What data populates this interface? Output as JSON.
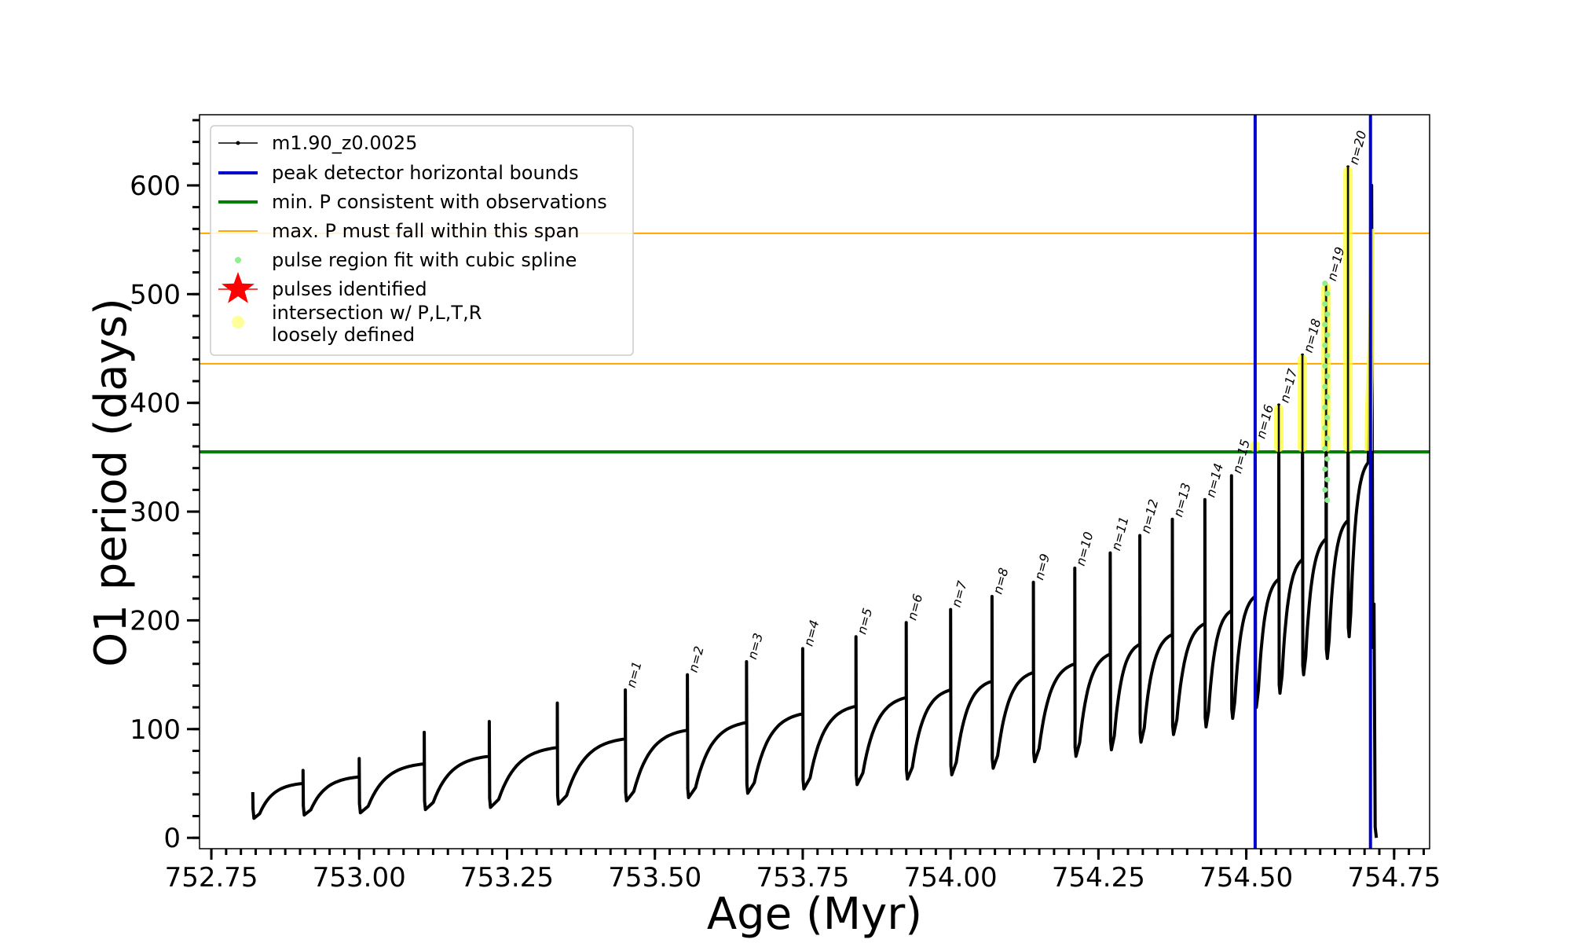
{
  "chart_data": {
    "type": "line",
    "title": "",
    "xlabel": "Age (Myr)",
    "ylabel": "O1 period (days)",
    "xlim": [
      752.73,
      754.81
    ],
    "ylim": [
      -10,
      665
    ],
    "x_ticks": [
      752.75,
      753.0,
      753.25,
      753.5,
      753.75,
      754.0,
      754.25,
      754.5,
      754.75
    ],
    "x_tick_labels": [
      "752.75",
      "753.00",
      "753.25",
      "753.50",
      "753.75",
      "754.00",
      "754.25",
      "754.50",
      "754.75"
    ],
    "y_ticks": [
      0,
      100,
      200,
      300,
      400,
      500,
      600
    ],
    "y_tick_labels": [
      "0",
      "100",
      "200",
      "300",
      "400",
      "500",
      "600"
    ],
    "grid": false,
    "legend_position": "top-left",
    "legend": [
      {
        "label": "m1.90_z0.0025",
        "color": "#000000",
        "style": "line-dot"
      },
      {
        "label": "peak detector horizontal bounds",
        "color": "#0000cc",
        "style": "line"
      },
      {
        "label": "min. P consistent with observations",
        "color": "#008000",
        "style": "line"
      },
      {
        "label": "max. P must fall within this span",
        "color": "#ffa500",
        "style": "thin-line"
      },
      {
        "label": "pulse region fit with cubic spline",
        "color": "#90ee90",
        "style": "dot"
      },
      {
        "label": "pulses identified",
        "color": "#ff0000",
        "style": "star"
      },
      {
        "label": "intersection w/ P,L,T,R\nloosely defined",
        "color": "#ffff99",
        "style": "big-dot"
      }
    ],
    "vertical_lines": [
      {
        "x": 754.515,
        "color": "#0000cc"
      },
      {
        "x": 754.71,
        "color": "#0000cc"
      }
    ],
    "horizontal_lines": [
      {
        "y": 355,
        "color": "#008000"
      },
      {
        "y": 436,
        "color": "#ffa500"
      },
      {
        "y": 556,
        "color": "#ffa500"
      }
    ],
    "series": [
      {
        "name": "m1.90_z0.0025",
        "color": "#000000",
        "cycles": [
          {
            "x0": 752.82,
            "x1": 752.905,
            "p0": 42,
            "pmin": 18,
            "pmax": 50
          },
          {
            "x0": 752.905,
            "x1": 753.0,
            "p0": 62,
            "pmin": 21,
            "pmax": 56
          },
          {
            "x0": 753.0,
            "x1": 753.11,
            "p0": 73,
            "pmin": 23,
            "pmax": 68
          },
          {
            "x0": 753.11,
            "x1": 753.22,
            "p0": 97,
            "pmin": 26,
            "pmax": 75
          },
          {
            "x0": 753.22,
            "x1": 753.335,
            "p0": 107,
            "pmin": 28,
            "pmax": 83
          },
          {
            "x0": 753.335,
            "x1": 753.45,
            "p0": 124,
            "pmin": 31,
            "pmax": 91
          },
          {
            "x0": 753.45,
            "x1": 753.555,
            "p0": 136,
            "pmin": 34,
            "pmax": 99,
            "label": "n=1"
          },
          {
            "x0": 753.555,
            "x1": 753.655,
            "p0": 150,
            "pmin": 37,
            "pmax": 106,
            "label": "n=2"
          },
          {
            "x0": 753.655,
            "x1": 753.75,
            "p0": 162,
            "pmin": 41,
            "pmax": 114,
            "label": "n=3"
          },
          {
            "x0": 753.75,
            "x1": 753.84,
            "p0": 174,
            "pmin": 45,
            "pmax": 121,
            "label": "n=4"
          },
          {
            "x0": 753.84,
            "x1": 753.925,
            "p0": 185,
            "pmin": 49,
            "pmax": 129,
            "label": "n=5"
          },
          {
            "x0": 753.925,
            "x1": 754.0,
            "p0": 198,
            "pmin": 54,
            "pmax": 136,
            "label": "n=6"
          },
          {
            "x0": 754.0,
            "x1": 754.07,
            "p0": 210,
            "pmin": 58,
            "pmax": 144,
            "label": "n=7"
          },
          {
            "x0": 754.07,
            "x1": 754.14,
            "p0": 222,
            "pmin": 64,
            "pmax": 152,
            "label": "n=8"
          },
          {
            "x0": 754.14,
            "x1": 754.21,
            "p0": 235,
            "pmin": 70,
            "pmax": 160,
            "label": "n=9"
          },
          {
            "x0": 754.21,
            "x1": 754.27,
            "p0": 248,
            "pmin": 75,
            "pmax": 169,
            "label": "n=10"
          },
          {
            "x0": 754.27,
            "x1": 754.32,
            "p0": 262,
            "pmin": 81,
            "pmax": 178,
            "label": "n=11"
          },
          {
            "x0": 754.32,
            "x1": 754.375,
            "p0": 278,
            "pmin": 88,
            "pmax": 187,
            "label": "n=12"
          },
          {
            "x0": 754.375,
            "x1": 754.43,
            "p0": 293,
            "pmin": 95,
            "pmax": 197,
            "label": "n=13"
          },
          {
            "x0": 754.43,
            "x1": 754.475,
            "p0": 311,
            "pmin": 102,
            "pmax": 209,
            "label": "n=14"
          },
          {
            "x0": 754.475,
            "x1": 754.515,
            "p0": 333,
            "pmin": 110,
            "pmax": 222,
            "label": "n=15"
          },
          {
            "x0": 754.515,
            "x1": 754.555,
            "p0": 365,
            "pmin": 120,
            "pmax": 238,
            "label": "n=16"
          },
          {
            "x0": 754.555,
            "x1": 754.595,
            "p0": 398,
            "pmin": 133,
            "pmax": 256,
            "label": "n=17"
          },
          {
            "x0": 754.595,
            "x1": 754.635,
            "p0": 444,
            "pmin": 150,
            "pmax": 275,
            "label": "n=18"
          },
          {
            "x0": 754.635,
            "x1": 754.672,
            "p0": 510,
            "pmin": 165,
            "pmax": 292,
            "label": "n=19"
          },
          {
            "x0": 754.672,
            "x1": 754.706,
            "p0": 617,
            "pmin": 185,
            "pmax": 345,
            "label": "n=20"
          }
        ]
      }
    ]
  }
}
